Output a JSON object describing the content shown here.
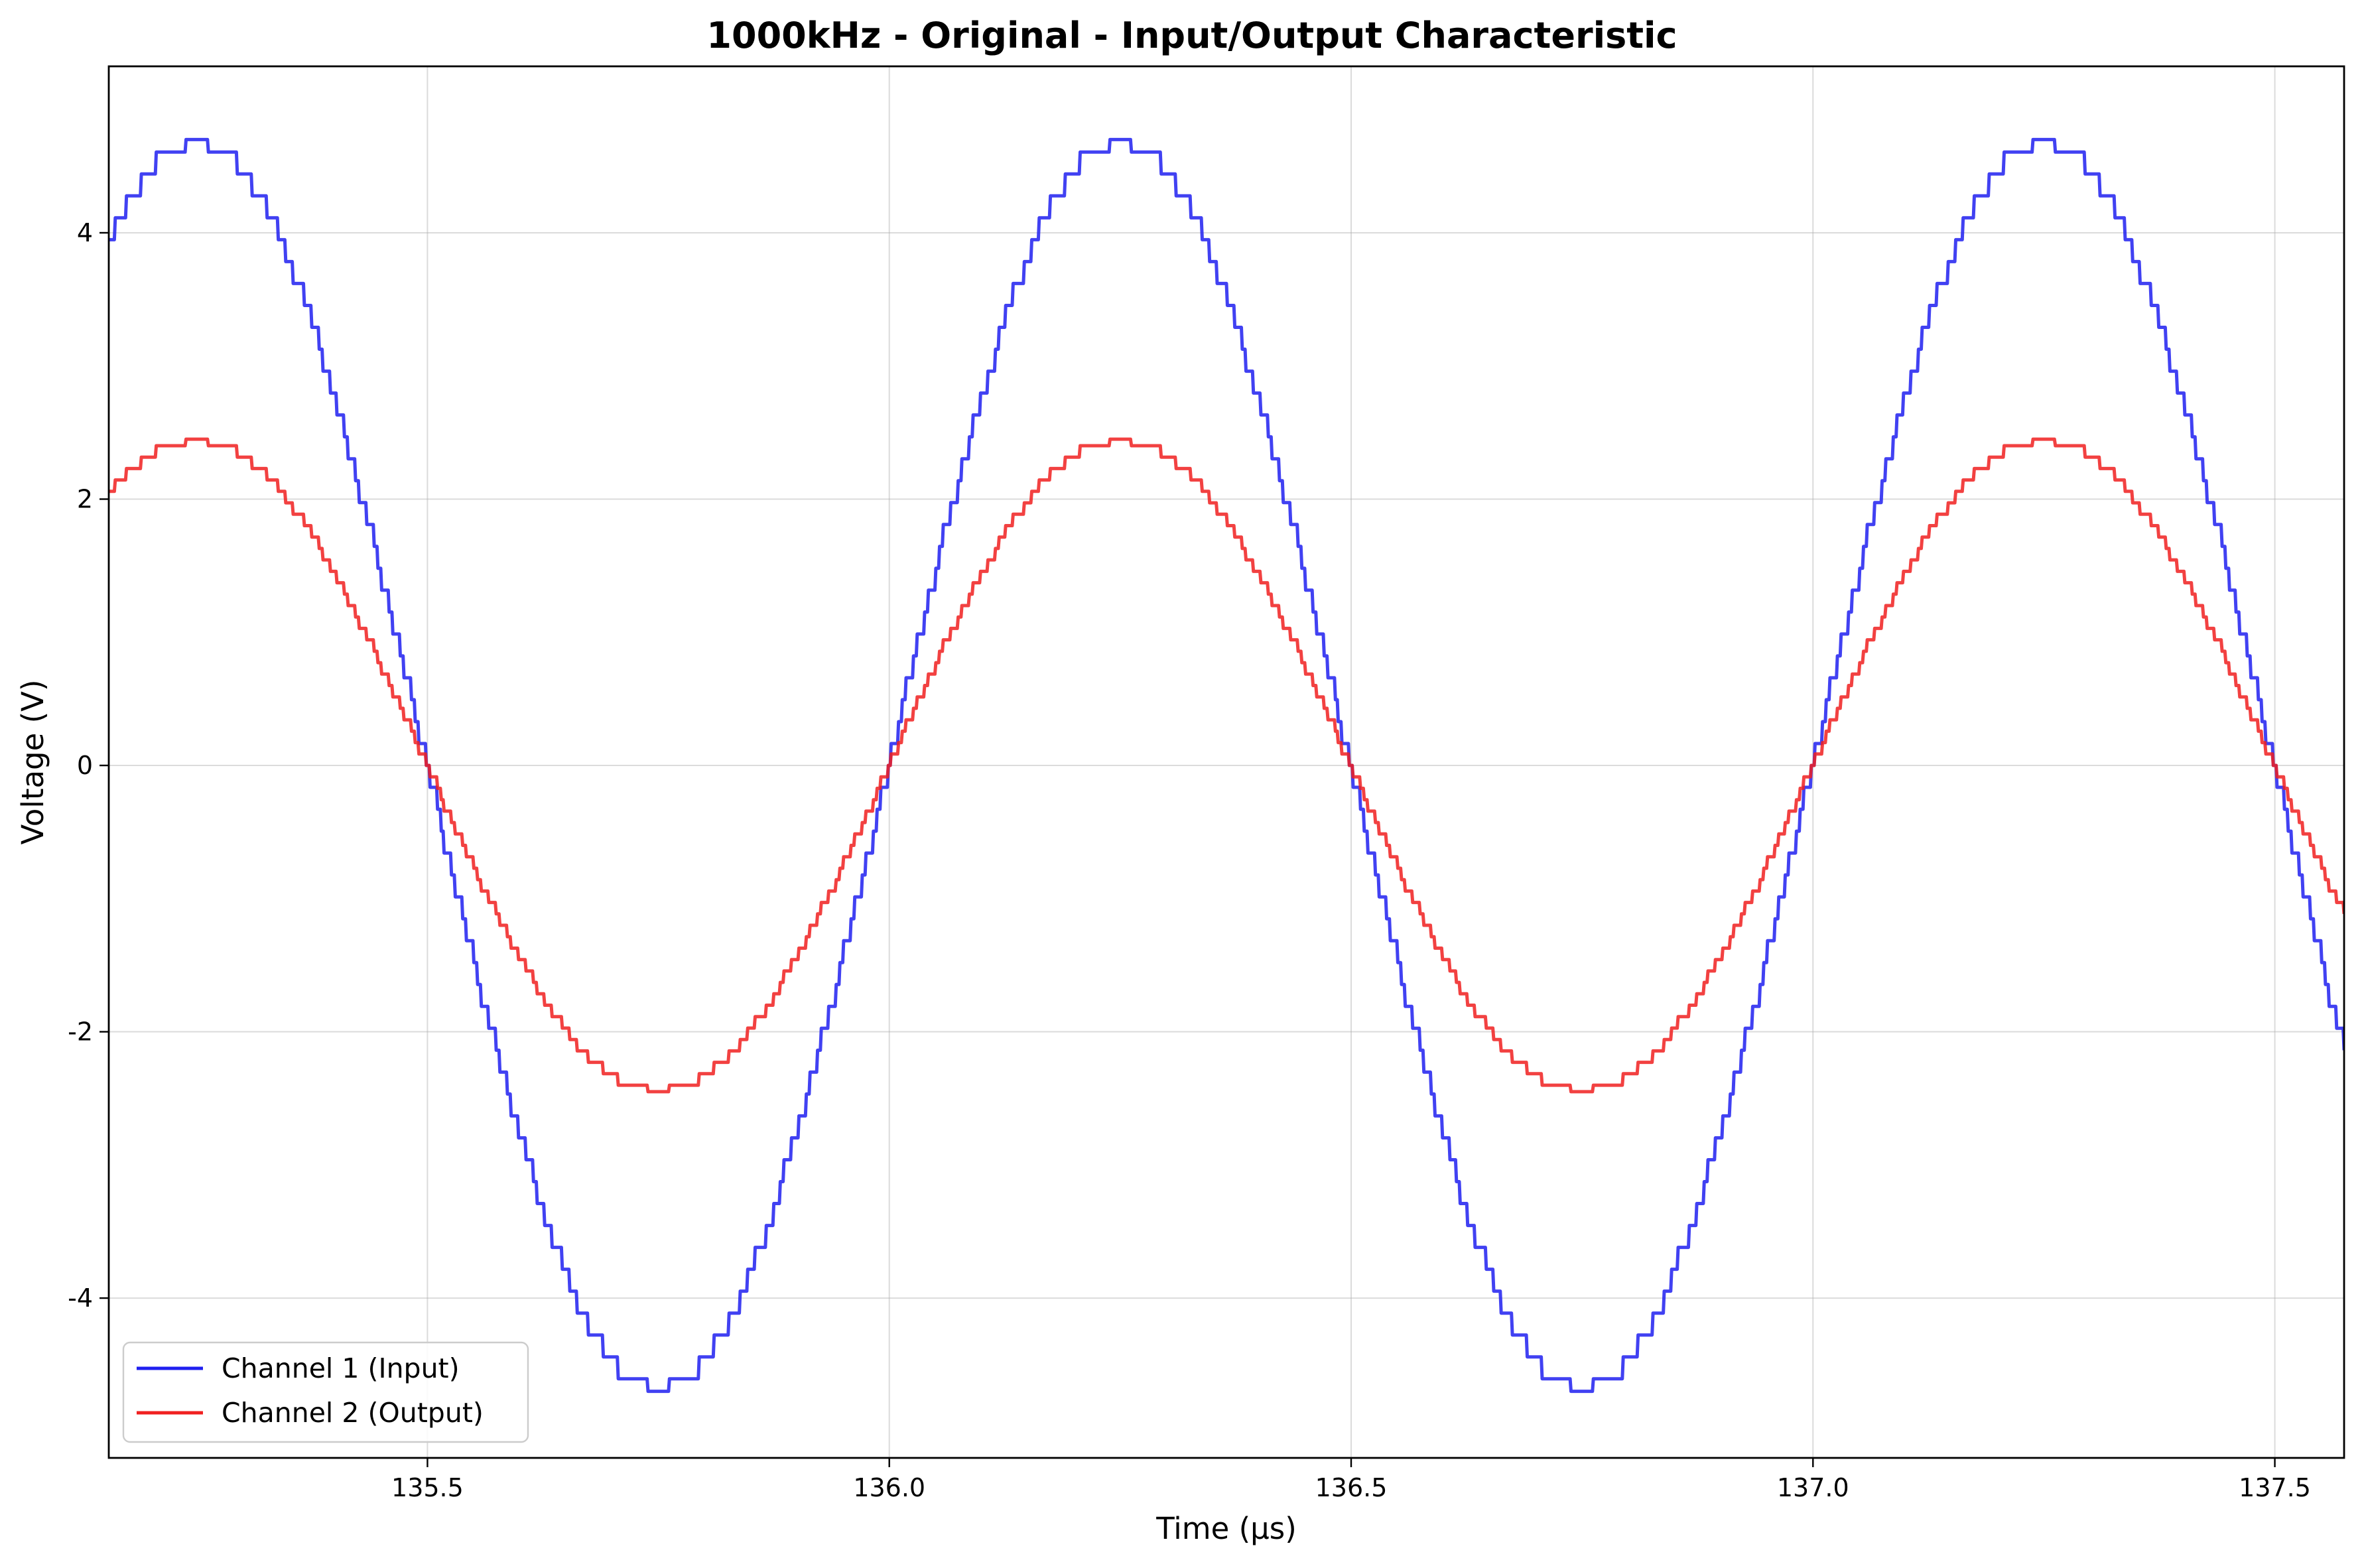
{
  "chart_data": {
    "type": "line",
    "title": "1000kHz - Original - Input/Output Characteristic",
    "xlabel": "Time (μs)",
    "ylabel": "Voltage (V)",
    "xlim": [
      135.155,
      137.575
    ],
    "ylim": [
      -5.2,
      5.25
    ],
    "xticks": [
      135.5,
      136.0,
      136.5,
      137.0,
      137.5
    ],
    "xtick_labels": [
      "135.5",
      "136.0",
      "136.5",
      "137.0",
      "137.5"
    ],
    "yticks": [
      -4,
      -2,
      0,
      2,
      4
    ],
    "ytick_labels": [
      "-4",
      "-2",
      "0",
      "2",
      "4"
    ],
    "grid": true,
    "legend_position": "lower-left",
    "series": [
      {
        "name": "Channel 1 (Input)",
        "color": "#2020f0",
        "amplitude": 4.7,
        "frequency_mhz": 1.0,
        "peak_times": [
          135.25,
          136.25,
          137.25
        ],
        "zero_crossings_falling": [
          135.5,
          136.5
        ],
        "zero_crossings_rising": [
          136.0,
          137.0
        ],
        "x": [
          135.155,
          135.2,
          135.25,
          135.3,
          135.4,
          135.5,
          135.6,
          135.7,
          135.75,
          135.8,
          135.9,
          136.0,
          136.1,
          136.2,
          136.25,
          136.3,
          136.4,
          136.5,
          136.6,
          136.7,
          136.75,
          136.8,
          136.9,
          137.0,
          137.1,
          137.2,
          137.25,
          137.3,
          137.4,
          137.5,
          137.575
        ],
        "y": [
          3.95,
          4.6,
          4.7,
          4.6,
          2.8,
          0.0,
          -2.8,
          -4.6,
          -4.7,
          -4.6,
          -2.8,
          0.0,
          2.8,
          4.6,
          4.7,
          4.6,
          2.8,
          0.0,
          -2.8,
          -4.6,
          -4.7,
          -4.6,
          -2.8,
          0.0,
          2.8,
          4.6,
          4.7,
          4.6,
          2.8,
          0.0,
          -1.72
        ]
      },
      {
        "name": "Channel 2 (Output)",
        "color": "#f02020",
        "amplitude": 2.45,
        "frequency_mhz": 1.0,
        "peak_times": [
          135.25,
          136.25,
          137.25
        ],
        "x": [
          135.155,
          135.2,
          135.25,
          135.3,
          135.4,
          135.5,
          135.6,
          135.7,
          135.75,
          135.8,
          135.9,
          136.0,
          136.1,
          136.2,
          136.25,
          136.3,
          136.4,
          136.5,
          136.6,
          136.7,
          136.75,
          136.8,
          136.9,
          137.0,
          137.1,
          137.2,
          137.25,
          137.3,
          137.4,
          137.5,
          137.575
        ],
        "y": [
          2.2,
          2.42,
          2.45,
          2.35,
          1.2,
          -0.35,
          -1.6,
          -2.33,
          -2.38,
          -2.2,
          -1.1,
          0.3,
          1.5,
          2.35,
          2.45,
          2.35,
          1.2,
          -0.3,
          -1.6,
          -2.33,
          -2.38,
          -2.2,
          -1.1,
          0.35,
          1.5,
          2.35,
          2.45,
          2.35,
          1.2,
          -0.2,
          -1.0
        ]
      }
    ]
  }
}
